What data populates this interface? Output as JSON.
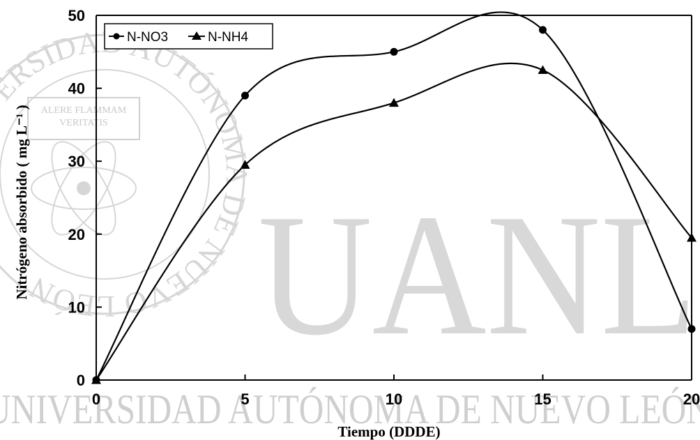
{
  "chart_data": {
    "type": "line",
    "x": [
      0,
      5,
      10,
      15,
      20
    ],
    "series": [
      {
        "name": "N-NO3",
        "marker": "circle",
        "values": [
          0,
          39,
          45,
          48,
          7
        ]
      },
      {
        "name": "N-NH4",
        "marker": "triangle",
        "values": [
          0,
          29.5,
          38,
          42.5,
          19.5
        ]
      }
    ],
    "xlabel": "Tiempo (DDDE)",
    "ylabel": "Nitrógeno absorbido ( mg L⁻¹ )",
    "xlim": [
      0,
      20
    ],
    "ylim": [
      0,
      50
    ],
    "xticks": [
      "0",
      "5",
      "10",
      "15",
      "20"
    ],
    "yticks": [
      "0",
      "10",
      "20",
      "30",
      "40",
      "50"
    ],
    "grid": false,
    "legend_position": "top-left",
    "line_color": "#000000"
  },
  "watermark": {
    "big_text": "UANL",
    "line_text": "UNIVERSIDAD AUTÓNOMA DE NUEVO LEÓN",
    "ring_text": "UNIVERSIDAD AUTÓNOMA DE NUEVO LEÓN",
    "seal_text_1": "ALERE FLAMMAM",
    "seal_text_2": "VERITATIS",
    "color": "#d4d4d4"
  }
}
